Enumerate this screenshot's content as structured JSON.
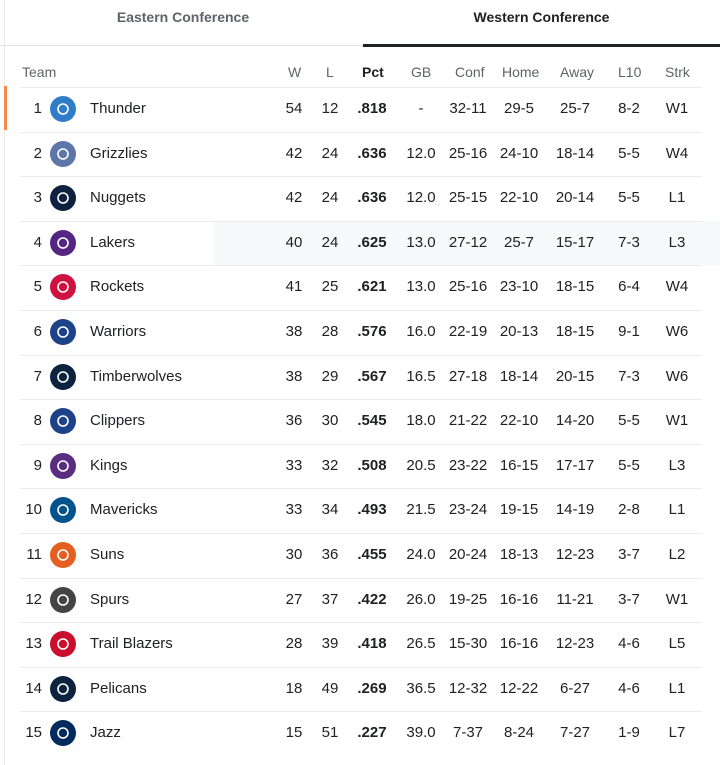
{
  "tabs": {
    "east": "Eastern Conference",
    "west": "Western Conference"
  },
  "columns": {
    "team": "Team",
    "w": "W",
    "l": "L",
    "pct": "Pct",
    "gb": "GB",
    "conf": "Conf",
    "home": "Home",
    "away": "Away",
    "l10": "L10",
    "strk": "Strk"
  },
  "rows": [
    {
      "rank": "1",
      "team": "Thunder",
      "w": "54",
      "l": "12",
      "pct": ".818",
      "gb": "-",
      "conf": "32-11",
      "home": "29-5",
      "away": "25-7",
      "l10": "8-2",
      "strk": "W1",
      "logo": "thunder-logo",
      "color": "#2f7dc7"
    },
    {
      "rank": "2",
      "team": "Grizzlies",
      "w": "42",
      "l": "24",
      "pct": ".636",
      "gb": "12.0",
      "conf": "25-16",
      "home": "24-10",
      "away": "18-14",
      "l10": "5-5",
      "strk": "W4",
      "logo": "grizzlies-logo",
      "color": "#5d76a9"
    },
    {
      "rank": "3",
      "team": "Nuggets",
      "w": "42",
      "l": "24",
      "pct": ".636",
      "gb": "12.0",
      "conf": "25-15",
      "home": "22-10",
      "away": "20-14",
      "l10": "5-5",
      "strk": "L1",
      "logo": "nuggets-logo",
      "color": "#0e2240"
    },
    {
      "rank": "4",
      "team": "Lakers",
      "w": "40",
      "l": "24",
      "pct": ".625",
      "gb": "13.0",
      "conf": "27-12",
      "home": "25-7",
      "away": "15-17",
      "l10": "7-3",
      "strk": "L3",
      "logo": "lakers-logo",
      "color": "#552583"
    },
    {
      "rank": "5",
      "team": "Rockets",
      "w": "41",
      "l": "25",
      "pct": ".621",
      "gb": "13.0",
      "conf": "25-16",
      "home": "23-10",
      "away": "18-15",
      "l10": "6-4",
      "strk": "W4",
      "logo": "rockets-logo",
      "color": "#ce1141"
    },
    {
      "rank": "6",
      "team": "Warriors",
      "w": "38",
      "l": "28",
      "pct": ".576",
      "gb": "16.0",
      "conf": "22-19",
      "home": "20-13",
      "away": "18-15",
      "l10": "9-1",
      "strk": "W6",
      "logo": "warriors-logo",
      "color": "#1d428a"
    },
    {
      "rank": "7",
      "team": "Timberwolves",
      "w": "38",
      "l": "29",
      "pct": ".567",
      "gb": "16.5",
      "conf": "27-18",
      "home": "18-14",
      "away": "20-15",
      "l10": "7-3",
      "strk": "W6",
      "logo": "timberwolves-logo",
      "color": "#0c2340"
    },
    {
      "rank": "8",
      "team": "Clippers",
      "w": "36",
      "l": "30",
      "pct": ".545",
      "gb": "18.0",
      "conf": "21-22",
      "home": "22-10",
      "away": "14-20",
      "l10": "5-5",
      "strk": "W1",
      "logo": "clippers-logo",
      "color": "#1d428a"
    },
    {
      "rank": "9",
      "team": "Kings",
      "w": "33",
      "l": "32",
      "pct": ".508",
      "gb": "20.5",
      "conf": "23-22",
      "home": "16-15",
      "away": "17-17",
      "l10": "5-5",
      "strk": "L3",
      "logo": "kings-logo",
      "color": "#5a2d81"
    },
    {
      "rank": "10",
      "team": "Mavericks",
      "w": "33",
      "l": "34",
      "pct": ".493",
      "gb": "21.5",
      "conf": "23-24",
      "home": "19-15",
      "away": "14-19",
      "l10": "2-8",
      "strk": "L1",
      "logo": "mavericks-logo",
      "color": "#00538c"
    },
    {
      "rank": "11",
      "team": "Suns",
      "w": "30",
      "l": "36",
      "pct": ".455",
      "gb": "24.0",
      "conf": "20-24",
      "home": "18-13",
      "away": "12-23",
      "l10": "3-7",
      "strk": "L2",
      "logo": "suns-logo",
      "color": "#e56020"
    },
    {
      "rank": "12",
      "team": "Spurs",
      "w": "27",
      "l": "37",
      "pct": ".422",
      "gb": "26.0",
      "conf": "19-25",
      "home": "16-16",
      "away": "11-21",
      "l10": "3-7",
      "strk": "W1",
      "logo": "spurs-logo",
      "color": "#444444"
    },
    {
      "rank": "13",
      "team": "Trail Blazers",
      "w": "28",
      "l": "39",
      "pct": ".418",
      "gb": "26.5",
      "conf": "15-30",
      "home": "16-16",
      "away": "12-23",
      "l10": "4-6",
      "strk": "L5",
      "logo": "trail-blazers-logo",
      "color": "#c8102e"
    },
    {
      "rank": "14",
      "team": "Pelicans",
      "w": "18",
      "l": "49",
      "pct": ".269",
      "gb": "36.5",
      "conf": "12-32",
      "home": "12-22",
      "away": "6-27",
      "l10": "4-6",
      "strk": "L1",
      "logo": "pelicans-logo",
      "color": "#0c2340"
    },
    {
      "rank": "15",
      "team": "Jazz",
      "w": "15",
      "l": "51",
      "pct": ".227",
      "gb": "39.0",
      "conf": "7-37",
      "home": "8-24",
      "away": "7-27",
      "l10": "1-9",
      "strk": "L7",
      "logo": "jazz-logo",
      "color": "#002b5c"
    }
  ],
  "colors": {
    "accent": "#f28b44",
    "text": "#202124",
    "muted": "#5f6368"
  }
}
